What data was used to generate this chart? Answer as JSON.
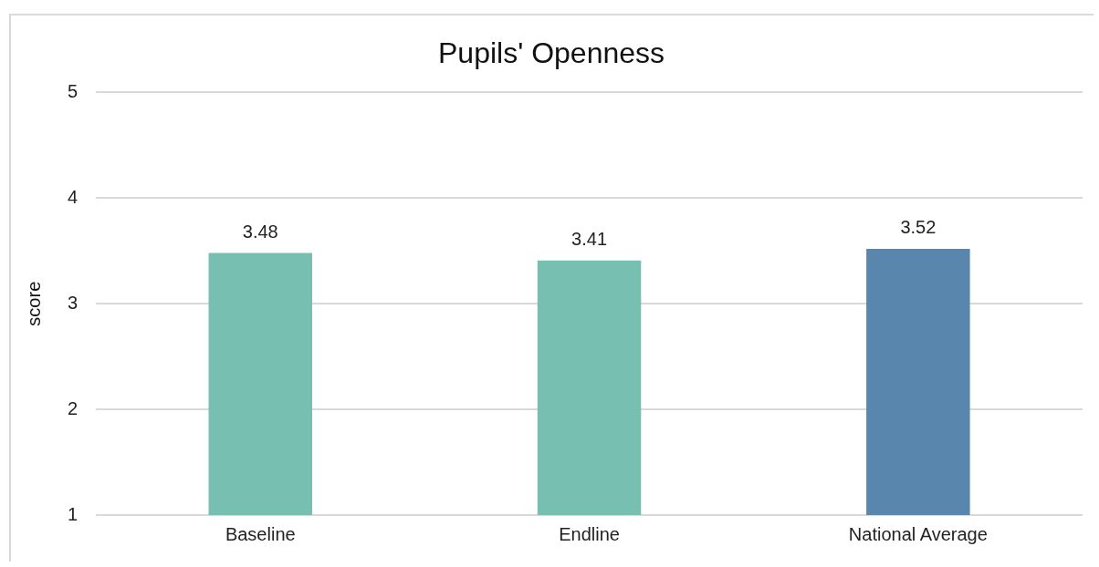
{
  "chart_data": {
    "type": "bar",
    "title": "Pupils' Openness",
    "ylabel": "score",
    "categories": [
      "Baseline",
      "Endline",
      "National Average"
    ],
    "values": [
      3.48,
      3.41,
      3.52
    ],
    "colors": [
      "#77bfb0",
      "#77bfb0",
      "#5886ad"
    ],
    "ylim": [
      1,
      5
    ],
    "yticks": [
      1,
      2,
      3,
      4,
      5
    ],
    "grid": "y",
    "data_labels": true
  }
}
